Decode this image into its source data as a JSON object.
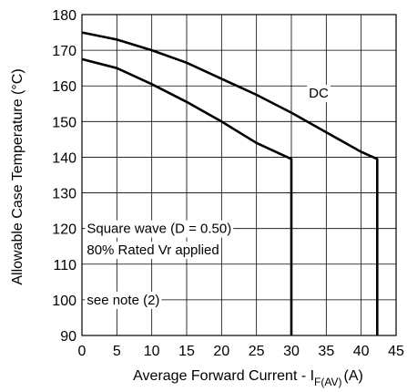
{
  "chart_data": {
    "type": "line",
    "xlabel": "Average Forward Current - I",
    "xlabel_sub": "F(AV)",
    "xlabel_unit": "(A)",
    "ylabel": "Allowable Case Temperature (°C)",
    "xlim": [
      0,
      45
    ],
    "ylim": [
      90,
      180
    ],
    "xticks": [
      0,
      5,
      10,
      15,
      20,
      25,
      30,
      35,
      40,
      45
    ],
    "yticks": [
      90,
      100,
      110,
      120,
      130,
      140,
      150,
      160,
      170,
      180
    ],
    "grid": true,
    "series": [
      {
        "name": "DC",
        "x": [
          0,
          5,
          10,
          15,
          20,
          25,
          30,
          35,
          40,
          42.3,
          42.3
        ],
        "y": [
          175,
          173,
          170,
          166.5,
          162,
          157.5,
          152.5,
          147,
          141.5,
          139.5,
          90
        ]
      },
      {
        "name": "",
        "x": [
          0,
          5,
          10,
          15,
          20,
          25,
          30,
          30
        ],
        "y": [
          167.5,
          165,
          160.5,
          155.5,
          150,
          144,
          139.5,
          90
        ]
      }
    ],
    "annotations": [
      {
        "text": "DC",
        "x": 32.5,
        "y": 158
      },
      {
        "text": "Square wave (D = 0.50)",
        "x": 0.7,
        "y": 120
      },
      {
        "text": "80% Rated Vr  applied",
        "x": 0.7,
        "y": 114
      },
      {
        "text": "see note (2)",
        "x": 0.7,
        "y": 100
      }
    ]
  }
}
